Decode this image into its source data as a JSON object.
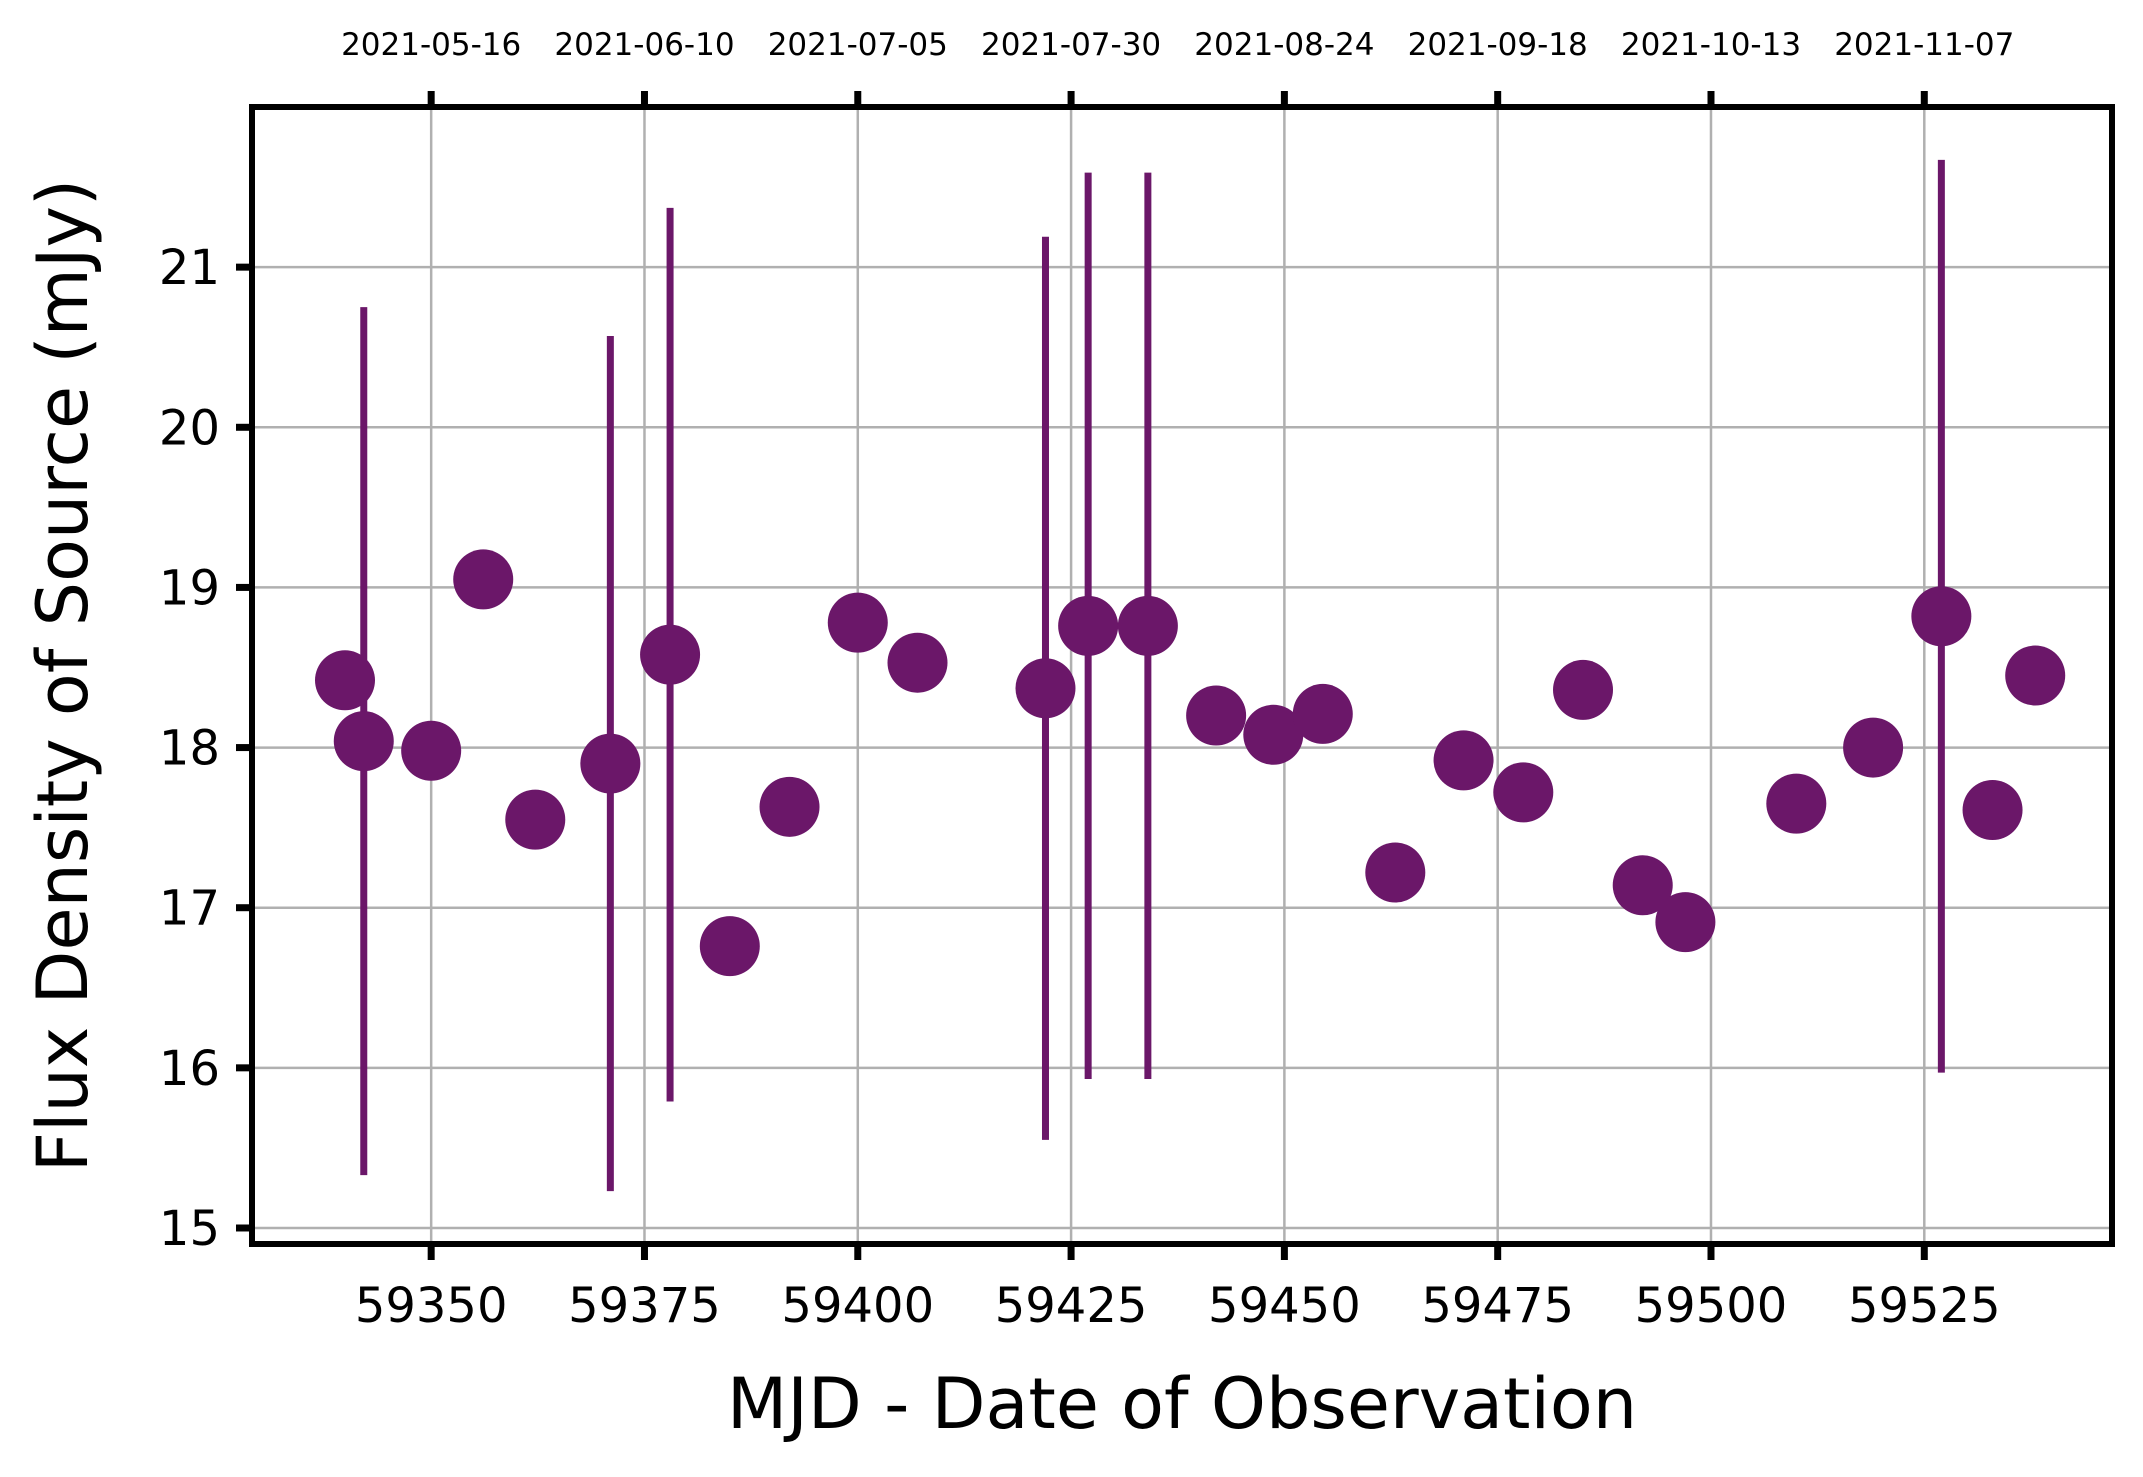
{
  "chart_data": {
    "type": "scatter",
    "title": "",
    "xlabel": "MJD - Date of Observation",
    "ylabel": "Flux Density of Source (mJy)",
    "xlim": [
      59329,
      59547
    ],
    "ylim": [
      14.9,
      22.0
    ],
    "x_ticks": [
      59350,
      59375,
      59400,
      59425,
      59450,
      59475,
      59500,
      59525
    ],
    "y_ticks": [
      15,
      16,
      17,
      18,
      19,
      20,
      21
    ],
    "top_axis": {
      "ticks": [
        59350,
        59375,
        59400,
        59425,
        59450,
        59475,
        59500,
        59525
      ],
      "labels": [
        "2021-05-16",
        "2021-06-10",
        "2021-07-05",
        "2021-07-30",
        "2021-08-24",
        "2021-09-18",
        "2021-10-13",
        "2021-11-07"
      ]
    },
    "grid": true,
    "marker_color": "#6b1769",
    "series": [
      {
        "points": [
          {
            "x": 59339.9,
            "y": 18.42
          },
          {
            "x": 59342.1,
            "y": 18.04,
            "err": 2.71
          },
          {
            "x": 59350.0,
            "y": 17.98
          },
          {
            "x": 59356.1,
            "y": 19.05
          },
          {
            "x": 59362.2,
            "y": 17.55
          },
          {
            "x": 59371.0,
            "y": 17.9,
            "err": 2.67
          },
          {
            "x": 59378.0,
            "y": 18.58,
            "err": 2.79
          },
          {
            "x": 59385.0,
            "y": 16.76
          },
          {
            "x": 59392.0,
            "y": 17.63
          },
          {
            "x": 59400.0,
            "y": 18.78
          },
          {
            "x": 59407.0,
            "y": 18.53
          },
          {
            "x": 59422.0,
            "y": 18.37,
            "err": 2.82
          },
          {
            "x": 59427.0,
            "y": 18.76,
            "err": 2.83
          },
          {
            "x": 59434.0,
            "y": 18.76,
            "err": 2.83
          },
          {
            "x": 59442.0,
            "y": 18.2
          },
          {
            "x": 59448.7,
            "y": 18.08
          },
          {
            "x": 59454.5,
            "y": 18.21
          },
          {
            "x": 59463.0,
            "y": 17.22
          },
          {
            "x": 59471.0,
            "y": 17.92
          },
          {
            "x": 59478.0,
            "y": 17.72
          },
          {
            "x": 59485.0,
            "y": 18.36
          },
          {
            "x": 59492.0,
            "y": 17.14
          },
          {
            "x": 59497.0,
            "y": 16.91
          },
          {
            "x": 59510.0,
            "y": 17.65
          },
          {
            "x": 59519.0,
            "y": 18.0
          },
          {
            "x": 59527.0,
            "y": 18.82,
            "err": 2.85
          },
          {
            "x": 59533.0,
            "y": 17.61
          },
          {
            "x": 59538.0,
            "y": 18.45
          }
        ]
      }
    ]
  }
}
